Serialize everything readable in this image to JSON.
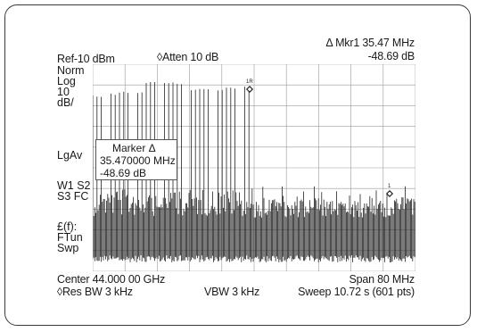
{
  "header": {
    "ref_level": "Ref-10 dBm",
    "attenuation": "◊Atten 10 dB",
    "marker_label": "Δ  Mkr1 35.47 MHz",
    "marker_amplitude": "-48.69 dB"
  },
  "side_labels": {
    "group1": [
      "Norm",
      "Log",
      "10",
      "dB/"
    ],
    "group2": [
      "LgAv"
    ],
    "group3": [
      "W1 S2",
      "S3 FC"
    ],
    "group4": [
      "£(f):",
      "FTun",
      "Swp"
    ]
  },
  "marker_readout": {
    "title": "Marker Δ",
    "frequency": "35.470000 MHz",
    "amplitude": "-48.69 dB"
  },
  "markers": {
    "reference_label": "1R",
    "delta_label": "1"
  },
  "footer": {
    "center": "Center 44.000 00 GHz",
    "span": "Span 80 MHz",
    "rbw": "◊Res BW 3 kHz",
    "vbw": "VBW 3 kHz",
    "sweep": "Sweep  10.72 s (601 pts)"
  },
  "trace_colors": {
    "grid": "#9a9a9a",
    "trace": "#222222"
  }
}
